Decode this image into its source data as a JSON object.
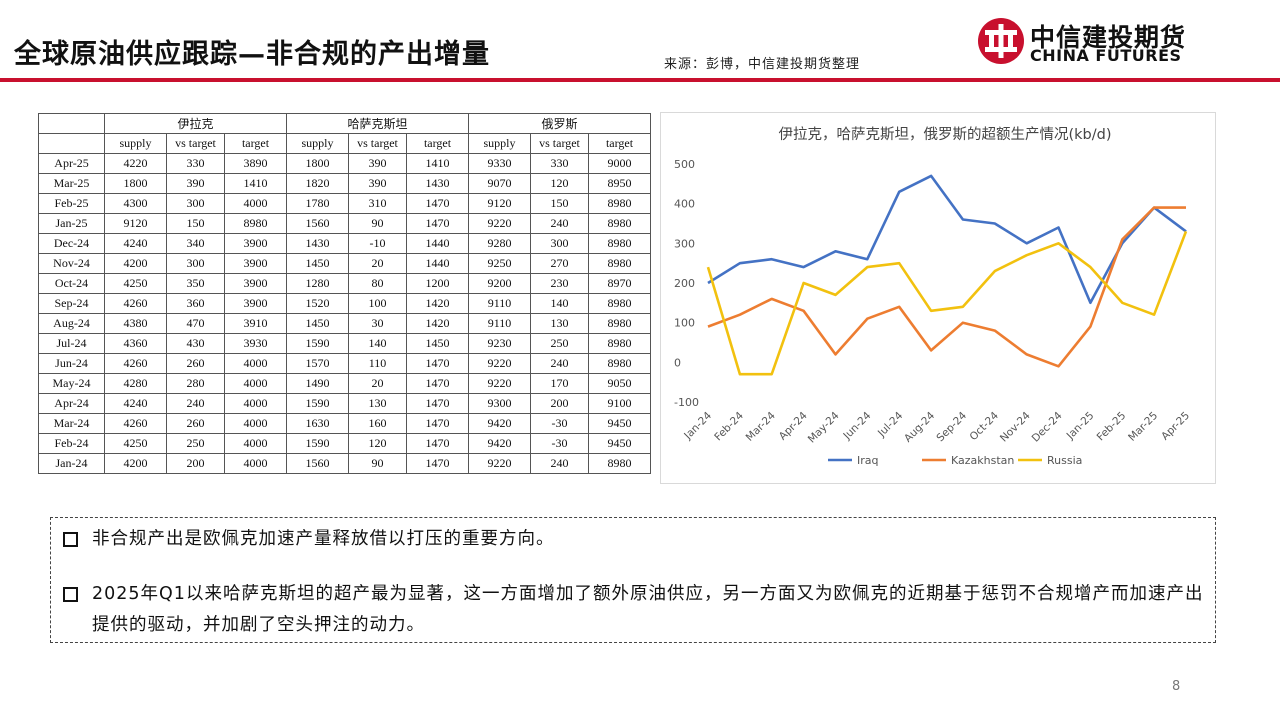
{
  "header": {
    "title": "全球原油供应跟踪—非合规的产出增量",
    "source": "来源：彭博，中信建投期货整理",
    "logo_cn": "中信建投期货",
    "logo_en": "CHINA FUTURES"
  },
  "table": {
    "groups": [
      "伊拉克",
      "哈萨克斯坦",
      "俄罗斯"
    ],
    "subheaders": [
      "supply",
      "vs target",
      "target"
    ],
    "rows": [
      [
        "Apr-25",
        "4220",
        "330",
        "3890",
        "1800",
        "390",
        "1410",
        "9330",
        "330",
        "9000"
      ],
      [
        "Mar-25",
        "1800",
        "390",
        "1410",
        "1820",
        "390",
        "1430",
        "9070",
        "120",
        "8950"
      ],
      [
        "Feb-25",
        "4300",
        "300",
        "4000",
        "1780",
        "310",
        "1470",
        "9120",
        "150",
        "8980"
      ],
      [
        "Jan-25",
        "9120",
        "150",
        "8980",
        "1560",
        "90",
        "1470",
        "9220",
        "240",
        "8980"
      ],
      [
        "Dec-24",
        "4240",
        "340",
        "3900",
        "1430",
        "-10",
        "1440",
        "9280",
        "300",
        "8980"
      ],
      [
        "Nov-24",
        "4200",
        "300",
        "3900",
        "1450",
        "20",
        "1440",
        "9250",
        "270",
        "8980"
      ],
      [
        "Oct-24",
        "4250",
        "350",
        "3900",
        "1280",
        "80",
        "1200",
        "9200",
        "230",
        "8970"
      ],
      [
        "Sep-24",
        "4260",
        "360",
        "3900",
        "1520",
        "100",
        "1420",
        "9110",
        "140",
        "8980"
      ],
      [
        "Aug-24",
        "4380",
        "470",
        "3910",
        "1450",
        "30",
        "1420",
        "9110",
        "130",
        "8980"
      ],
      [
        "Jul-24",
        "4360",
        "430",
        "3930",
        "1590",
        "140",
        "1450",
        "9230",
        "250",
        "8980"
      ],
      [
        "Jun-24",
        "4260",
        "260",
        "4000",
        "1570",
        "110",
        "1470",
        "9220",
        "240",
        "8980"
      ],
      [
        "May-24",
        "4280",
        "280",
        "4000",
        "1490",
        "20",
        "1470",
        "9220",
        "170",
        "9050"
      ],
      [
        "Apr-24",
        "4240",
        "240",
        "4000",
        "1590",
        "130",
        "1470",
        "9300",
        "200",
        "9100"
      ],
      [
        "Mar-24",
        "4260",
        "260",
        "4000",
        "1630",
        "160",
        "1470",
        "9420",
        "-30",
        "9450"
      ],
      [
        "Feb-24",
        "4250",
        "250",
        "4000",
        "1590",
        "120",
        "1470",
        "9420",
        "-30",
        "9450"
      ],
      [
        "Jan-24",
        "4200",
        "200",
        "4000",
        "1560",
        "90",
        "1470",
        "9220",
        "240",
        "8980"
      ]
    ]
  },
  "chart_data": {
    "type": "line",
    "title": "伊拉克，哈萨克斯坦，俄罗斯的超额生产情况(kb/d)",
    "categories": [
      "Jan-24",
      "Feb-24",
      "Mar-24",
      "Apr-24",
      "May-24",
      "Jun-24",
      "Jul-24",
      "Aug-24",
      "Sep-24",
      "Oct-24",
      "Nov-24",
      "Dec-24",
      "Jan-25",
      "Feb-25",
      "Mar-25",
      "Apr-25"
    ],
    "series": [
      {
        "name": "Iraq",
        "color": "#4472C4",
        "values": [
          200,
          250,
          260,
          240,
          280,
          260,
          430,
          470,
          360,
          350,
          300,
          340,
          150,
          300,
          390,
          330
        ]
      },
      {
        "name": "Kazakhstan",
        "color": "#ED7D31",
        "values": [
          90,
          120,
          160,
          130,
          20,
          110,
          140,
          30,
          100,
          80,
          20,
          -10,
          90,
          310,
          390,
          390
        ]
      },
      {
        "name": "Russia",
        "color": "#F2C10F",
        "values": [
          240,
          -30,
          -30,
          200,
          170,
          240,
          250,
          130,
          140,
          230,
          270,
          300,
          240,
          150,
          120,
          330
        ]
      }
    ],
    "yticks": [
      -100,
      0,
      100,
      200,
      300,
      400,
      500
    ],
    "ylim": [
      -100,
      500
    ],
    "grid": false,
    "legend": "bottom"
  },
  "bullets": [
    "非合规产出是欧佩克加速产量释放借以打压的重要方向。",
    "2025年Q1以来哈萨克斯坦的超产最为显著，这一方面增加了额外原油供应，另一方面又为欧佩克的近期基于惩罚不合规增产而加速产出提供的驱动，并加剧了空头押注的动力。"
  ],
  "page_number": "8"
}
